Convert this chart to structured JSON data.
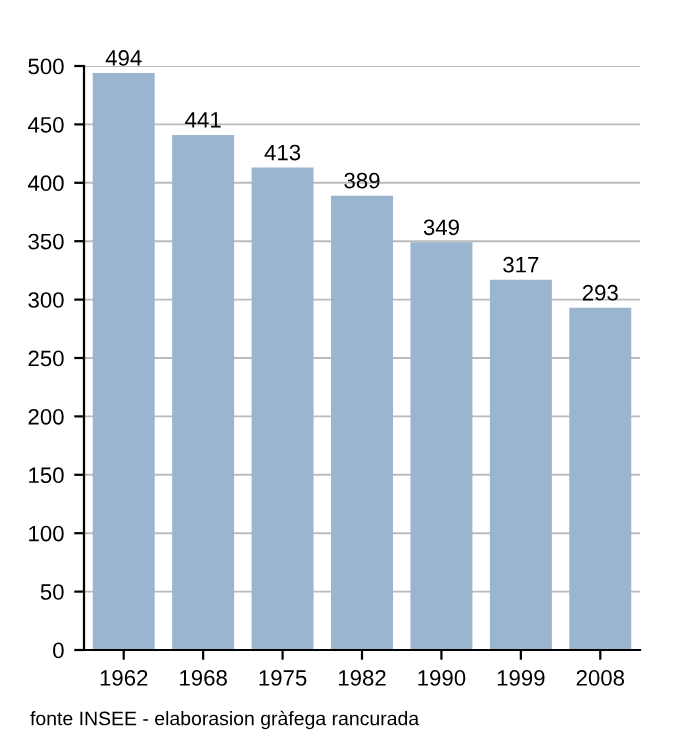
{
  "chart_data": {
    "type": "bar",
    "categories": [
      "1962",
      "1968",
      "1975",
      "1982",
      "1990",
      "1999",
      "2008"
    ],
    "values": [
      494,
      441,
      413,
      389,
      349,
      317,
      293
    ],
    "color": "#9bb4cf",
    "data_labels": true,
    "ylim": [
      0,
      500
    ],
    "yticks": [
      0,
      50,
      100,
      150,
      200,
      250,
      300,
      350,
      400,
      450,
      500
    ],
    "grid": "y",
    "annotations": [
      "fonte INSEE - elaborasion gràfega rancurada"
    ]
  }
}
